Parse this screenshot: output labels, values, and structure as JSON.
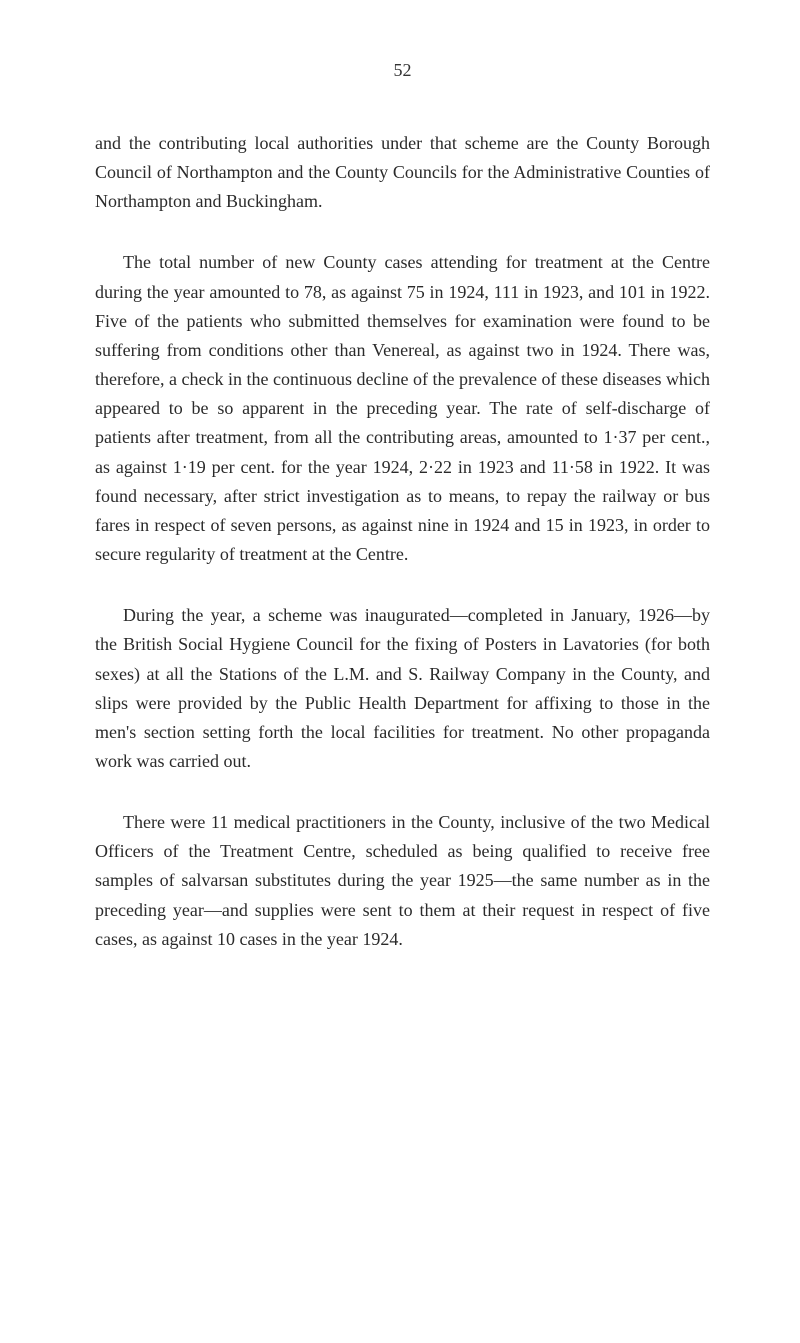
{
  "page": {
    "number": "52",
    "background_color": "#ffffff",
    "text_color": "#2a2a2a",
    "font_family": "Georgia, Times New Roman, serif",
    "body_fontsize": 18,
    "line_height": 1.62,
    "paragraphs": [
      {
        "text": "and the contributing local authorities under that scheme are the County Borough Council of Northampton and the County Councils for the Administrative Counties of Northampton and Buckingham.",
        "indented": false
      },
      {
        "text": "The total number of new County cases attending for treat­ment at the Centre during the year amounted to 78, as against 75 in 1924, 111 in 1923, and 101 in 1922. Five of the patients who submitted themselves for examination were found to be suffering from conditions other than Venereal, as against two in 1924. There was, therefore, a check in the continuous decline of the prevalence of these diseases which appeared to be so apparent in the preceding year. The rate of self-discharge of patients after treatment, from all the contributing areas, amounted to 1·37 per cent., as against 1·19 per cent. for the year 1924, 2·22 in 1923 and 11·58 in 1922. It was found necessary, after strict investigation as to means, to repay the railway or bus fares in respect of seven persons, as against nine in 1924 and 15 in 1923, in order to secure regu­larity of treatment at the Centre.",
        "indented": true
      },
      {
        "text": "During the year, a scheme was inaugurated—completed in January, 1926—by the British Social Hygiene Council for the fixing of Posters in Lavatories (for both sexes) at all the Stations of the L.M. and S. Railway Company in the County, and slips were provided by the Public Health Department for affixing to those in the men's section setting forth the local facilities for treatment. No other propaganda work was carried out.",
        "indented": true
      },
      {
        "text": "There were 11 medical practitioners in the County, in­clusive of the two Medical Officers of the Treatment Centre, scheduled as being qualified to receive free samples of salvarsan substitutes during the year 1925—the same number as in the preceding year—and supplies were sent to them at their request in respect of five cases, as against 10 cases in the year 1924.",
        "indented": true
      }
    ]
  }
}
